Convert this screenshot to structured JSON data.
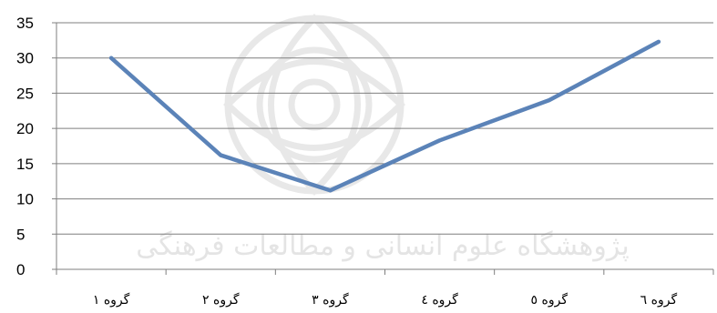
{
  "chart_data": {
    "type": "line",
    "categories": [
      "گروه ۱",
      "گروه ۲",
      "گروه ۳",
      "گروه ٤",
      "گروه ٥",
      "گروه ٦"
    ],
    "series": [
      {
        "values": [
          30,
          16.2,
          11.2,
          18.3,
          24,
          32.3
        ],
        "color": "#5b83b8"
      }
    ],
    "ylim": [
      0,
      35
    ],
    "yticks": [
      0,
      5,
      10,
      15,
      20,
      25,
      30,
      35
    ],
    "grid": true,
    "title": "",
    "xlabel": "",
    "ylabel": ""
  },
  "watermark": {
    "text": "پژوهشگاه علوم انسانی و مطالعات فرهنگی"
  }
}
